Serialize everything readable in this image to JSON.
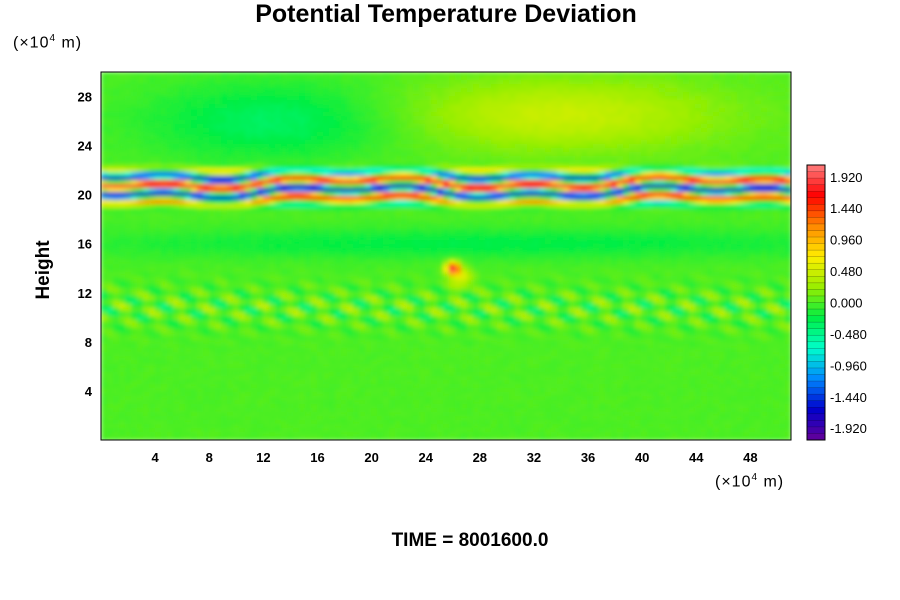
{
  "chart_data": {
    "type": "heatmap",
    "title": "Potential Temperature Deviation",
    "ylabel": "Height",
    "xlabel": "",
    "x_unit": "(×10",
    "x_unit_exp": "4",
    "x_unit_tail": " m)",
    "y_unit": "(×10",
    "y_unit_exp": "4",
    "y_unit_tail": " m)",
    "xlim": [
      0,
      51
    ],
    "ylim": [
      0,
      30
    ],
    "x_ticks": [
      4,
      8,
      12,
      16,
      20,
      24,
      28,
      32,
      36,
      40,
      44,
      48
    ],
    "y_ticks": [
      4,
      8,
      12,
      16,
      20,
      24,
      28
    ],
    "colorbar": {
      "range": [
        -2.1,
        2.1
      ],
      "labels": [
        "1.920",
        "1.440",
        "0.960",
        "0.480",
        "0.000",
        "-0.480",
        "-0.960",
        "-1.440",
        "-1.920"
      ],
      "label_values": [
        1.92,
        1.44,
        0.96,
        0.48,
        0.0,
        -0.48,
        -0.96,
        -1.44,
        -1.92
      ],
      "colors": [
        "#ff8080",
        "#ff0000",
        "#ff8800",
        "#ffee00",
        "#99ee00",
        "#00ee44",
        "#00ffcc",
        "#0088ff",
        "#0000cc",
        "#660099"
      ]
    },
    "features": [
      {
        "name": "strong oscillation band",
        "y_range": [
          19.2,
          22.0
        ],
        "amplitude": 1.9
      },
      {
        "name": "weak band",
        "y_range": [
          9.0,
          12.5
        ],
        "amplitude": 0.5
      },
      {
        "name": "warm spot",
        "x": 26,
        "y": 14,
        "value": 1.9
      }
    ]
  },
  "footer": {
    "time_label": "TIME = 8001600.0"
  }
}
